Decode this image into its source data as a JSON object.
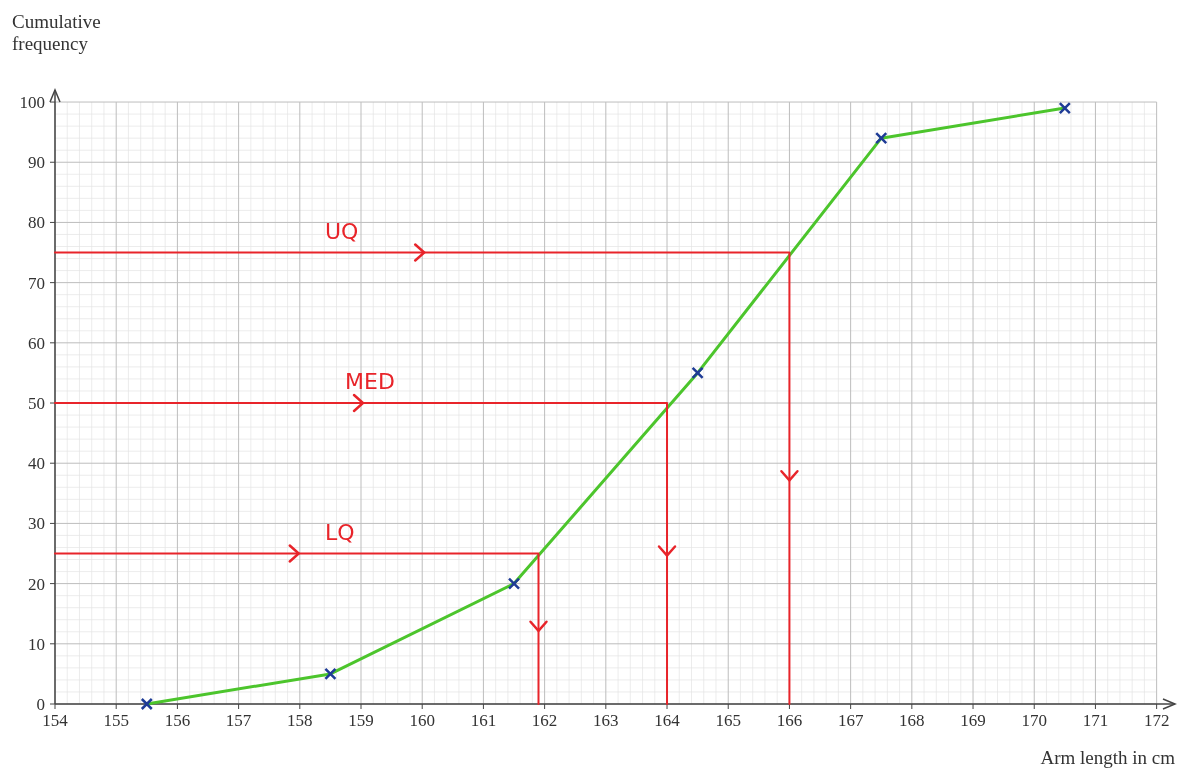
{
  "chart_data": {
    "type": "line",
    "xlabel": "Arm length in cm",
    "ylabel": "Cumulative frequency",
    "xlim": [
      154,
      172.3
    ],
    "ylim": [
      0,
      102
    ],
    "xticks": [
      154,
      155,
      156,
      157,
      158,
      159,
      160,
      161,
      162,
      163,
      164,
      165,
      166,
      167,
      168,
      169,
      170,
      171,
      172
    ],
    "yticks": [
      0,
      10,
      20,
      30,
      40,
      50,
      60,
      70,
      80,
      90,
      100
    ],
    "grid": true,
    "line_style": "solid",
    "series": [
      {
        "color": "#4cc52c",
        "marker": "none",
        "x": [
          155.5,
          158.5,
          161.5,
          164.5,
          167.5,
          170.5
        ],
        "values": [
          0,
          5,
          20,
          55,
          94,
          99
        ]
      },
      {
        "type": "scatter",
        "color": "#1f3c96",
        "marker": "cross",
        "x": [
          155.5,
          158.5,
          161.5,
          164.5,
          167.5,
          170.5
        ],
        "values": [
          0,
          5,
          20,
          55,
          94,
          99
        ]
      },
      {
        "color": "#e8242a",
        "marker": "none",
        "x": [
          154,
          166,
          166
        ],
        "values": [
          75,
          75,
          0
        ]
      },
      {
        "color": "#e8242a",
        "marker": "none",
        "x": [
          154,
          164,
          164
        ],
        "values": [
          50,
          50,
          0
        ]
      },
      {
        "color": "#e8242a",
        "marker": "none",
        "x": [
          154,
          161.9,
          161.9
        ],
        "values": [
          25,
          25,
          0
        ]
      }
    ],
    "annotations": [
      "UQ",
      "MED",
      "LQ"
    ]
  }
}
